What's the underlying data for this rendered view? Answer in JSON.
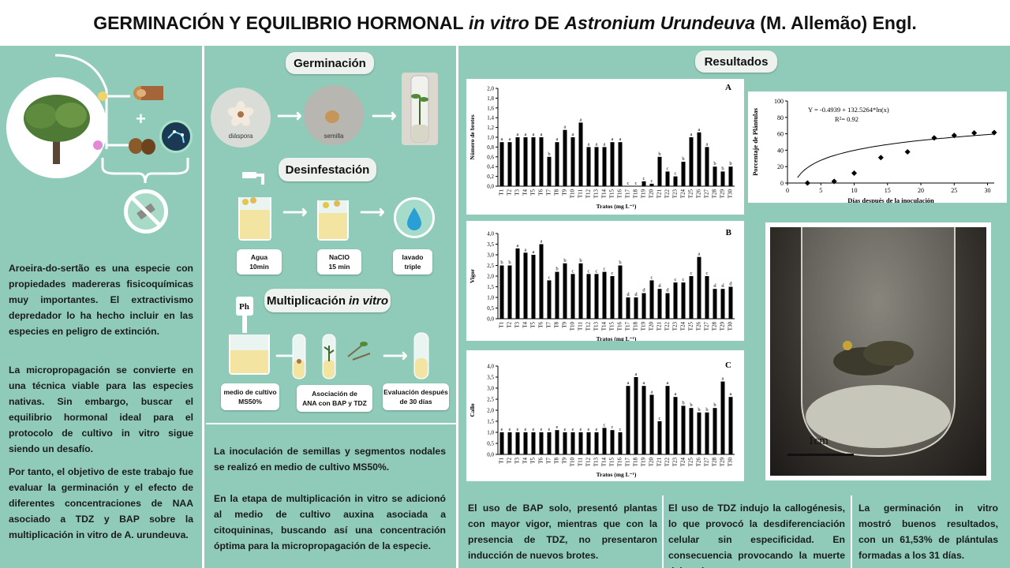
{
  "title": {
    "part1": "GERMINACIÓN Y EQUILIBRIO HORMONAL",
    "part2": "in vitro",
    "part3": "DE",
    "part4": "Astronium Urundeuva",
    "part5": "(M. Allemão) Engl."
  },
  "left": {
    "p1": "Aroeira-do-sertão es una especie con propiedades madereras fisicoquímicas muy importantes. El extractivismo depredador lo ha hecho incluir en las especies en peligro de extinción.",
    "p2": "La micropropagación se convierte en una técnica viable para las especies nativas. Sin embargo, buscar el equilibrio hormonal ideal para el protocolo de cultivo in vitro sigue siendo un desafío.",
    "p3": "Por tanto, el objetivo de este trabajo fue evaluar la germinación y el efecto de diferentes concentraciones de NAA asociado a TDZ y BAP sobre la multiplicación in vitro de A. urundeuva."
  },
  "middle": {
    "germ_title": "Germinación",
    "diaspora": "diáspora",
    "semilla": "semilla",
    "desinf_title": "Desinfestación",
    "agua": "Agua",
    "agua_t": "10min",
    "naclo": "NaClO",
    "naclo_t": "15 min",
    "lavado": "lavado",
    "lavado2": "triple",
    "mult_title": "Multiplicación",
    "mult_title_it": "in vitro",
    "ph": "Ph",
    "medio": "medio de cultivo",
    "medio2": "MS50%",
    "asoc": "Asociación de",
    "asoc2": "ANA con BAP y TDZ",
    "eval": "Evaluación después",
    "eval2": "de 30 días",
    "p1": "La inoculación de semillas y segmentos nodales se realizó en medio de cultivo MS50%.",
    "p2": "En la etapa de multiplicación in vitro se adicionó al medio de cultivo auxina asociada a citoquininas, buscando así una concentración óptima para la micropropagación de la especie."
  },
  "results": {
    "title": "Resultados",
    "photo_scale": "1cm",
    "c1": "El uso de BAP solo, presentó plantas con mayor vigor, mientras que con la presencia de TDZ, no presentaron inducción de nuevos brotes.",
    "c2": "El uso de TDZ indujo la callogénesis, lo que provocó la desdiferenciación celular sin especificidad. En consecuencia provocando la muerte del explante.",
    "c3": "La germinación in vitro mostró buenos resultados, con un 61,53% de plántulas formadas a los 31 días."
  },
  "chart_data": [
    {
      "type": "bar",
      "panel": "A",
      "ylabel": "Número de brotes",
      "xlabel": "Tratos (mg L⁻¹)",
      "ylim": [
        0,
        2.0
      ],
      "yticks": [
        "0,0",
        "0,2",
        "0,4",
        "0,6",
        "0,8",
        "1,0",
        "1,2",
        "1,4",
        "1,6",
        "1,8",
        "2,0"
      ],
      "categories": [
        "T1",
        "T2",
        "T3",
        "T4",
        "T5",
        "T6",
        "T7",
        "T8",
        "T9",
        "T10",
        "T11",
        "T12",
        "T13",
        "T14",
        "T15",
        "T16",
        "T17",
        "T18",
        "T19",
        "T20",
        "T21",
        "T22",
        "T23",
        "T24",
        "T25",
        "T26",
        "T27",
        "T28",
        "T29",
        "T30"
      ],
      "values": [
        0.9,
        0.9,
        1.0,
        1.0,
        1.0,
        1.0,
        0.6,
        0.9,
        1.15,
        1.0,
        1.3,
        0.8,
        0.8,
        0.8,
        0.9,
        0.9,
        0.0,
        0.0,
        0.1,
        0.05,
        0.6,
        0.3,
        0.2,
        0.5,
        1.0,
        1.1,
        0.8,
        0.4,
        0.3,
        0.4
      ],
      "letters": [
        "a",
        "a",
        "a",
        "a",
        "a",
        "a",
        "b",
        "a",
        "a",
        "a",
        "a",
        "a",
        "a",
        "a",
        "a",
        "a",
        "c",
        "c",
        "c",
        "c",
        "b",
        "c",
        "c",
        "b",
        "a",
        "a",
        "a",
        "b",
        "b",
        "b"
      ]
    },
    {
      "type": "bar",
      "panel": "B",
      "ylabel": "Vigor",
      "xlabel": "Tratos (mg L⁻¹)",
      "ylim": [
        0,
        4.0
      ],
      "yticks": [
        "0,0",
        "0,5",
        "1,0",
        "1,5",
        "2,0",
        "2,5",
        "3,0",
        "3,5",
        "4,0"
      ],
      "categories": [
        "T1",
        "T2",
        "T3",
        "T4",
        "T5",
        "T6",
        "T7",
        "T8",
        "T9",
        "T10",
        "T11",
        "T12",
        "T13",
        "T14",
        "T15",
        "T16",
        "T17",
        "T18",
        "T19",
        "T20",
        "T21",
        "T22",
        "T23",
        "T24",
        "T25",
        "T26",
        "T27",
        "T28",
        "T29",
        "T30"
      ],
      "values": [
        2.5,
        2.5,
        3.3,
        3.1,
        3.0,
        3.5,
        1.8,
        2.2,
        2.6,
        2.1,
        2.6,
        2.1,
        2.1,
        2.2,
        2.0,
        2.5,
        1.0,
        1.0,
        1.2,
        1.8,
        1.4,
        1.2,
        1.7,
        1.7,
        2.0,
        2.9,
        2.0,
        1.4,
        1.4,
        1.5
      ],
      "letters": [
        "b",
        "b",
        "a",
        "a",
        "a",
        "a",
        "c",
        "b",
        "b",
        "c",
        "b",
        "c",
        "c",
        "c",
        "c",
        "b",
        "d",
        "d",
        "d",
        "c",
        "d",
        "d",
        "c",
        "c",
        "c",
        "a",
        "c",
        "d",
        "d",
        "d"
      ]
    },
    {
      "type": "bar",
      "panel": "C",
      "ylabel": "Callo",
      "xlabel": "Tratos (mg L⁻¹)",
      "ylim": [
        0,
        4.0
      ],
      "yticks": [
        "0,0",
        "0,5",
        "1,0",
        "1,5",
        "2,0",
        "2,5",
        "3,0",
        "3,5",
        "4,0"
      ],
      "categories": [
        "T1",
        "T2",
        "T3",
        "T4",
        "T5",
        "T6",
        "T7",
        "T8",
        "T9",
        "T10",
        "T11",
        "T12",
        "T13",
        "T14",
        "T15",
        "T16",
        "T17",
        "T18",
        "T19",
        "T20",
        "T21",
        "T22",
        "T23",
        "T24",
        "T25",
        "T26",
        "T27",
        "T28",
        "T29",
        "T30"
      ],
      "values": [
        1.0,
        1.0,
        1.0,
        1.0,
        1.0,
        1.0,
        1.0,
        1.1,
        1.0,
        1.0,
        1.0,
        1.0,
        1.0,
        1.2,
        1.1,
        1.0,
        3.1,
        3.5,
        3.1,
        2.7,
        1.5,
        3.1,
        2.6,
        2.2,
        2.1,
        1.9,
        1.9,
        2.1,
        3.3,
        2.6
      ],
      "letters": [
        "e",
        "e",
        "e",
        "e",
        "e",
        "e",
        "e",
        "e",
        "e",
        "e",
        "e",
        "e",
        "e",
        "c",
        "c",
        "c",
        "a",
        "a",
        "a",
        "a",
        "c",
        "a",
        "a",
        "b",
        "b",
        "b",
        "b",
        "b",
        "a",
        "a"
      ]
    },
    {
      "type": "scatter",
      "xlabel": "Días después de la inoculación",
      "ylabel": "Porcentaje de Plántulas",
      "ylim": [
        0,
        100
      ],
      "xlim": [
        0,
        31
      ],
      "xticks": [
        0,
        5,
        10,
        15,
        20,
        25,
        30
      ],
      "yticks": [
        0,
        20,
        40,
        60,
        80,
        100
      ],
      "x": [
        3,
        7,
        10,
        14,
        18,
        22,
        25,
        28,
        31
      ],
      "y": [
        0,
        2,
        12,
        31,
        38,
        55,
        58,
        61,
        61.5
      ],
      "equation": "Y =  -0.4939 + 132.5264*ln(x)",
      "r2": "R²= 0.92"
    }
  ]
}
